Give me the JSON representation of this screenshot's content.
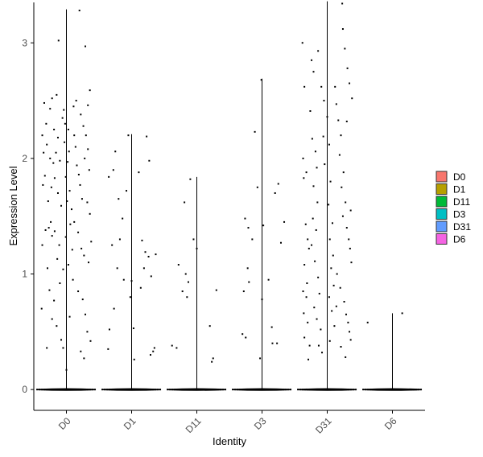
{
  "chart_data": {
    "type": "violin-scatter",
    "xlabel": "Identity",
    "ylabel": "Expression Level",
    "ylim": [
      -0.18,
      3.35
    ],
    "yticks": [
      0,
      1,
      2,
      3
    ],
    "categories": [
      "D0",
      "D1",
      "D11",
      "D3",
      "D31",
      "D6"
    ],
    "max_values": [
      3.29,
      2.21,
      1.84,
      2.69,
      3.36,
      0.66
    ],
    "zero_line": 0,
    "series": [
      {
        "name": "D0",
        "color": "#F8766D"
      },
      {
        "name": "D1",
        "color": "#B79F00"
      },
      {
        "name": "D11",
        "color": "#00BA38"
      },
      {
        "name": "D3",
        "color": "#00BFC4"
      },
      {
        "name": "D31",
        "color": "#619CFF"
      },
      {
        "name": "D6",
        "color": "#F564E3"
      }
    ],
    "legend_position": "right",
    "grid": false,
    "points": {
      "D0": [
        [
          -0.38,
          0.7
        ],
        [
          -0.3,
          0.36
        ],
        [
          -0.37,
          1.25
        ],
        [
          -0.32,
          1.38
        ],
        [
          -0.27,
          1.4
        ],
        [
          -0.22,
          1.33
        ],
        [
          -0.24,
          1.45
        ],
        [
          -0.33,
          1.85
        ],
        [
          -0.28,
          1.63
        ],
        [
          -0.23,
          1.75
        ],
        [
          -0.35,
          2.05
        ],
        [
          -0.3,
          2.12
        ],
        [
          -0.25,
          2.0
        ],
        [
          -0.2,
          1.96
        ],
        [
          -0.37,
          2.2
        ],
        [
          -0.31,
          2.3
        ],
        [
          -0.25,
          2.43
        ],
        [
          -0.22,
          2.52
        ],
        [
          -0.15,
          2.55
        ],
        [
          -0.34,
          2.48
        ],
        [
          -0.19,
          2.25
        ],
        [
          -0.13,
          2.18
        ],
        [
          -0.16,
          2.05
        ],
        [
          -0.1,
          1.98
        ],
        [
          -0.18,
          1.83
        ],
        [
          -0.13,
          1.7
        ],
        [
          -0.08,
          1.59
        ],
        [
          -0.18,
          1.37
        ],
        [
          -0.11,
          1.25
        ],
        [
          -0.14,
          1.13
        ],
        [
          -0.05,
          1.04
        ],
        [
          -0.26,
          0.86
        ],
        [
          -0.19,
          0.77
        ],
        [
          -0.22,
          0.61
        ],
        [
          -0.15,
          0.55
        ],
        [
          -0.08,
          0.43
        ],
        [
          -0.05,
          0.36
        ],
        [
          -0.12,
          3.02
        ],
        [
          -0.04,
          2.42
        ],
        [
          -0.02,
          2.3
        ],
        [
          0.03,
          2.25
        ],
        [
          -0.03,
          2.14
        ],
        [
          0.04,
          2.06
        ],
        [
          0.02,
          1.97
        ],
        [
          -0.01,
          1.84
        ],
        [
          0.05,
          1.72
        ],
        [
          0.01,
          1.63
        ],
        [
          0.08,
          1.56
        ],
        [
          0.06,
          1.43
        ],
        [
          -0.01,
          1.32
        ],
        [
          0.09,
          1.21
        ],
        [
          0.03,
          1.08
        ],
        [
          0.11,
          2.45
        ],
        [
          0.12,
          2.2
        ],
        [
          0.14,
          2.1
        ],
        [
          0.16,
          1.94
        ],
        [
          0.19,
          1.86
        ],
        [
          0.21,
          1.77
        ],
        [
          0.24,
          1.65
        ],
        [
          0.12,
          1.45
        ],
        [
          0.18,
          1.36
        ],
        [
          0.23,
          1.22
        ],
        [
          0.27,
          1.16
        ],
        [
          0.15,
          2.5
        ],
        [
          0.22,
          2.38
        ],
        [
          0.26,
          2.28
        ],
        [
          0.3,
          2.2
        ],
        [
          0.33,
          2.08
        ],
        [
          0.28,
          2.0
        ],
        [
          0.35,
          1.9
        ],
        [
          0.32,
          1.62
        ],
        [
          0.36,
          1.52
        ],
        [
          0.38,
          1.28
        ],
        [
          0.34,
          1.1
        ],
        [
          0.18,
          0.85
        ],
        [
          0.25,
          0.78
        ],
        [
          0.29,
          0.65
        ],
        [
          0.32,
          0.5
        ],
        [
          0.37,
          0.42
        ],
        [
          0.22,
          0.33
        ],
        [
          0.27,
          0.27
        ],
        [
          0.2,
          3.28
        ],
        [
          0.29,
          2.97
        ],
        [
          0.36,
          2.59
        ],
        [
          0.33,
          2.46
        ],
        [
          0.1,
          0.95
        ],
        [
          0.05,
          0.63
        ],
        [
          0.0,
          0.17
        ],
        [
          -0.1,
          0.92
        ],
        [
          -0.29,
          1.05
        ],
        [
          -0.36,
          1.77
        ],
        [
          -0.06,
          2.35
        ]
      ],
      "D1": [
        [
          -0.35,
          1.84
        ],
        [
          -0.3,
          1.25
        ],
        [
          -0.27,
          0.7
        ],
        [
          -0.34,
          0.52
        ],
        [
          -0.36,
          0.35
        ],
        [
          -0.28,
          1.9
        ],
        [
          -0.25,
          2.06
        ],
        [
          -0.2,
          1.65
        ],
        [
          -0.18,
          1.3
        ],
        [
          -0.22,
          1.05
        ],
        [
          -0.12,
          0.95
        ],
        [
          -0.08,
          1.72
        ],
        [
          -0.05,
          2.2
        ],
        [
          -0.02,
          0.8
        ],
        [
          0.03,
          0.53
        ],
        [
          0.04,
          0.26
        ],
        [
          0.0,
          0.94
        ],
        [
          0.11,
          1.88
        ],
        [
          0.16,
          1.29
        ],
        [
          0.21,
          1.19
        ],
        [
          0.26,
          1.15
        ],
        [
          0.29,
          0.3
        ],
        [
          0.35,
          0.36
        ],
        [
          0.23,
          2.19
        ],
        [
          0.27,
          1.98
        ],
        [
          0.19,
          1.05
        ],
        [
          0.3,
          0.98
        ],
        [
          0.14,
          0.88
        ],
        [
          0.37,
          1.17
        ],
        [
          -0.14,
          1.48
        ],
        [
          0.33,
          0.33
        ]
      ],
      "D11": [
        [
          -0.38,
          0.38
        ],
        [
          -0.31,
          0.36
        ],
        [
          -0.28,
          1.08
        ],
        [
          -0.22,
          0.85
        ],
        [
          -0.17,
          1.0
        ],
        [
          -0.13,
          0.93
        ],
        [
          -0.15,
          0.8
        ],
        [
          -0.19,
          1.62
        ],
        [
          -0.1,
          1.82
        ],
        [
          -0.05,
          1.3
        ],
        [
          0.0,
          1.22
        ],
        [
          0.2,
          0.55
        ],
        [
          0.25,
          0.27
        ],
        [
          0.3,
          0.86
        ],
        [
          0.23,
          0.24
        ]
      ],
      "D3": [
        [
          -0.3,
          0.48
        ],
        [
          -0.28,
          0.85
        ],
        [
          -0.25,
          0.45
        ],
        [
          -0.2,
          0.93
        ],
        [
          -0.22,
          1.05
        ],
        [
          -0.26,
          1.48
        ],
        [
          -0.21,
          1.4
        ],
        [
          -0.15,
          1.3
        ],
        [
          -0.11,
          2.23
        ],
        [
          -0.07,
          1.75
        ],
        [
          -0.03,
          0.27
        ],
        [
          0.0,
          0.78
        ],
        [
          0.02,
          1.42
        ],
        [
          0.1,
          0.95
        ],
        [
          0.15,
          0.54
        ],
        [
          0.2,
          1.7
        ],
        [
          0.25,
          1.78
        ],
        [
          0.23,
          0.4
        ],
        [
          0.29,
          1.27
        ],
        [
          0.34,
          1.45
        ],
        [
          0.16,
          0.4
        ],
        [
          -0.01,
          2.68
        ]
      ],
      "D31": [
        [
          -0.38,
          3.0
        ],
        [
          -0.35,
          2.62
        ],
        [
          -0.37,
          2.0
        ],
        [
          -0.32,
          1.88
        ],
        [
          -0.36,
          1.83
        ],
        [
          -0.33,
          1.43
        ],
        [
          -0.3,
          1.3
        ],
        [
          -0.28,
          1.22
        ],
        [
          -0.35,
          1.08
        ],
        [
          -0.31,
          0.92
        ],
        [
          -0.37,
          0.85
        ],
        [
          -0.32,
          0.8
        ],
        [
          -0.36,
          0.66
        ],
        [
          -0.3,
          0.58
        ],
        [
          -0.35,
          0.45
        ],
        [
          -0.27,
          0.38
        ],
        [
          -0.29,
          0.26
        ],
        [
          -0.24,
          2.85
        ],
        [
          -0.21,
          2.75
        ],
        [
          -0.26,
          2.41
        ],
        [
          -0.23,
          2.17
        ],
        [
          -0.18,
          2.06
        ],
        [
          -0.16,
          1.92
        ],
        [
          -0.21,
          1.76
        ],
        [
          -0.15,
          1.62
        ],
        [
          -0.22,
          1.48
        ],
        [
          -0.17,
          1.38
        ],
        [
          -0.24,
          1.25
        ],
        [
          -0.19,
          1.11
        ],
        [
          -0.14,
          0.97
        ],
        [
          -0.12,
          0.83
        ],
        [
          -0.2,
          0.71
        ],
        [
          -0.16,
          0.61
        ],
        [
          -0.1,
          0.52
        ],
        [
          -0.13,
          0.38
        ],
        [
          -0.08,
          0.32
        ],
        [
          -0.14,
          2.93
        ],
        [
          -0.09,
          2.62
        ],
        [
          -0.05,
          2.5
        ],
        [
          0.0,
          2.36
        ],
        [
          -0.06,
          2.19
        ],
        [
          0.03,
          2.12
        ],
        [
          -0.04,
          1.95
        ],
        [
          0.05,
          1.8
        ],
        [
          0.02,
          1.6
        ],
        [
          0.08,
          1.44
        ],
        [
          0.04,
          1.3
        ],
        [
          0.09,
          1.16
        ],
        [
          0.06,
          1.05
        ],
        [
          0.1,
          0.9
        ],
        [
          0.03,
          0.8
        ],
        [
          0.07,
          0.68
        ],
        [
          0.11,
          0.55
        ],
        [
          0.04,
          0.42
        ],
        [
          0.12,
          2.62
        ],
        [
          0.14,
          2.47
        ],
        [
          0.17,
          2.33
        ],
        [
          0.21,
          2.2
        ],
        [
          0.19,
          2.03
        ],
        [
          0.25,
          1.88
        ],
        [
          0.22,
          1.75
        ],
        [
          0.28,
          1.62
        ],
        [
          0.24,
          1.5
        ],
        [
          0.3,
          1.4
        ],
        [
          0.33,
          1.3
        ],
        [
          0.36,
          1.55
        ],
        [
          0.35,
          1.22
        ],
        [
          0.37,
          1.1
        ],
        [
          0.15,
          1.0
        ],
        [
          0.2,
          0.88
        ],
        [
          0.26,
          0.76
        ],
        [
          0.29,
          0.65
        ],
        [
          0.32,
          0.58
        ],
        [
          0.34,
          0.5
        ],
        [
          0.36,
          0.43
        ],
        [
          0.21,
          0.37
        ],
        [
          0.28,
          0.28
        ],
        [
          0.23,
          3.34
        ],
        [
          0.24,
          3.12
        ],
        [
          0.31,
          2.78
        ],
        [
          0.34,
          2.65
        ],
        [
          0.27,
          2.95
        ],
        [
          0.38,
          2.52
        ],
        [
          0.3,
          2.32
        ],
        [
          0.14,
          0.72
        ]
      ],
      "D6": [
        [
          -0.38,
          0.58
        ],
        [
          0.15,
          0.66
        ]
      ]
    }
  }
}
